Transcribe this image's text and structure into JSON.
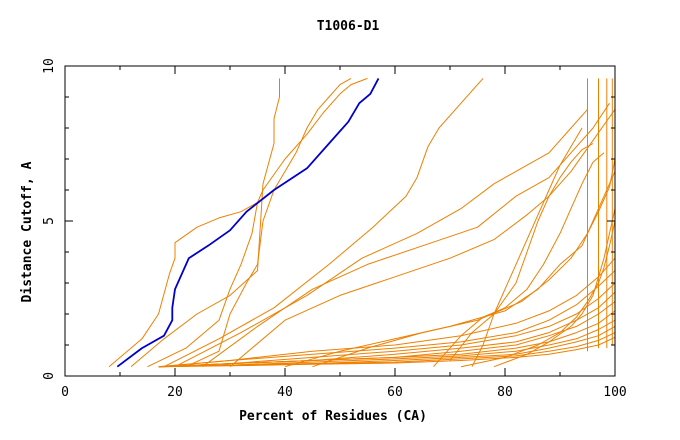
{
  "chart_data": {
    "type": "line",
    "title": "T1006-D1",
    "xlabel": "Percent of Residues (CA)",
    "ylabel": "Distance Cutoff, A",
    "xlim": [
      0,
      100
    ],
    "ylim": [
      0,
      10
    ],
    "xticks": [
      0,
      20,
      40,
      60,
      80,
      100
    ],
    "yticks": [
      0,
      5,
      10
    ],
    "grid": false,
    "colors": {
      "highlight": "#0000cc",
      "other": "#ee8000"
    },
    "highlight": {
      "x": [
        9.5,
        14,
        18,
        19.5,
        19.5,
        20,
        22.5,
        26,
        30,
        33,
        38,
        44,
        48,
        51.5,
        53.5,
        55.5,
        57
      ],
      "y": [
        0.3,
        0.9,
        1.3,
        1.8,
        2.2,
        2.8,
        3.8,
        4.2,
        4.7,
        5.3,
        6.0,
        6.7,
        7.5,
        8.2,
        8.8,
        9.1,
        9.6
      ]
    },
    "series": [
      {
        "x": [
          8,
          14,
          17,
          19,
          20,
          20,
          24,
          28,
          32,
          35
        ],
        "y": [
          0.3,
          1.2,
          2.0,
          3.3,
          3.8,
          4.3,
          4.8,
          5.1,
          5.3,
          5.6
        ]
      },
      {
        "x": [
          12,
          18,
          24,
          30,
          35,
          36,
          38,
          38,
          39,
          39
        ],
        "y": [
          0.3,
          1.2,
          2.0,
          2.6,
          3.4,
          6.2,
          7.5,
          8.3,
          9.0,
          9.6
        ]
      },
      {
        "x": [
          15,
          22,
          28,
          30,
          32,
          34,
          35,
          36,
          40,
          44,
          47,
          50,
          52,
          55
        ],
        "y": [
          0.3,
          0.9,
          1.8,
          2.8,
          3.6,
          4.6,
          5.6,
          6.0,
          7.0,
          7.8,
          8.5,
          9.1,
          9.4,
          9.6
        ]
      },
      {
        "x": [
          22,
          28,
          30,
          33,
          35,
          36,
          38,
          40,
          42,
          44,
          46,
          48,
          50,
          52
        ],
        "y": [
          0.3,
          0.8,
          2.0,
          3.0,
          3.6,
          5.0,
          6.0,
          6.6,
          7.2,
          8.0,
          8.6,
          9.0,
          9.4,
          9.6
        ]
      },
      {
        "x": [
          18,
          28,
          38,
          48,
          56,
          62,
          64,
          66,
          68,
          72,
          76
        ],
        "y": [
          0.3,
          1.2,
          2.2,
          3.6,
          4.8,
          5.8,
          6.4,
          7.4,
          8.0,
          8.8,
          9.6
        ]
      },
      {
        "x": [
          20,
          32,
          44,
          54,
          64,
          72,
          78,
          84,
          88,
          92,
          95
        ],
        "y": [
          0.3,
          1.4,
          2.6,
          3.8,
          4.6,
          5.4,
          6.2,
          6.8,
          7.2,
          8.0,
          8.6
        ]
      },
      {
        "x": [
          25,
          35,
          45,
          55,
          65,
          75,
          82,
          88,
          92,
          96,
          99
        ],
        "y": [
          0.3,
          1.6,
          2.8,
          3.6,
          4.2,
          4.8,
          5.8,
          6.4,
          7.2,
          8.0,
          8.8
        ]
      },
      {
        "x": [
          30,
          40,
          50,
          60,
          70,
          78,
          84,
          88,
          92,
          96,
          100
        ],
        "y": [
          0.3,
          1.8,
          2.6,
          3.2,
          3.8,
          4.4,
          5.2,
          5.8,
          6.6,
          7.6,
          8.6
        ]
      },
      {
        "x": [
          74,
          76,
          78,
          80,
          82,
          84,
          86,
          88,
          90,
          92,
          94
        ],
        "y": [
          0.3,
          1.0,
          2.0,
          2.8,
          3.6,
          4.4,
          5.2,
          6.0,
          6.8,
          7.4,
          8.0
        ]
      },
      {
        "x": [
          70,
          74,
          78,
          82,
          84,
          86,
          88,
          90,
          92,
          94,
          96
        ],
        "y": [
          0.5,
          1.4,
          2.0,
          3.0,
          4.0,
          5.0,
          5.8,
          6.4,
          6.9,
          7.3,
          7.5
        ]
      },
      {
        "x": [
          67,
          72,
          76,
          80,
          84,
          87,
          90,
          92,
          94,
          96,
          98
        ],
        "y": [
          0.3,
          1.3,
          1.9,
          2.2,
          2.8,
          3.6,
          4.6,
          5.4,
          6.2,
          6.9,
          7.2
        ]
      },
      {
        "x": [
          40,
          50,
          60,
          70,
          80,
          86,
          90,
          94,
          96,
          98,
          100
        ],
        "y": [
          0.3,
          0.8,
          1.2,
          1.6,
          2.1,
          2.8,
          3.6,
          4.2,
          5.0,
          5.8,
          6.6
        ]
      },
      {
        "x": [
          45,
          55,
          65,
          75,
          83,
          88,
          92,
          95,
          97,
          99,
          100
        ],
        "y": [
          0.3,
          0.9,
          1.4,
          1.8,
          2.4,
          3.1,
          3.8,
          4.6,
          5.3,
          6.1,
          7.0
        ]
      },
      {
        "x": [
          17,
          30,
          45,
          60,
          72,
          82,
          88,
          93,
          97,
          100
        ],
        "y": [
          0.3,
          0.5,
          0.8,
          1.0,
          1.3,
          1.7,
          2.1,
          2.6,
          3.2,
          3.8
        ]
      },
      {
        "x": [
          17,
          30,
          45,
          60,
          72,
          82,
          88,
          93,
          97,
          100
        ],
        "y": [
          0.3,
          0.5,
          0.7,
          0.9,
          1.1,
          1.4,
          1.8,
          2.3,
          2.9,
          3.4
        ]
      },
      {
        "x": [
          17,
          30,
          45,
          60,
          72,
          82,
          88,
          93,
          97,
          100
        ],
        "y": [
          0.3,
          0.4,
          0.6,
          0.8,
          1.0,
          1.3,
          1.6,
          2.0,
          2.5,
          3.0
        ]
      },
      {
        "x": [
          17,
          30,
          45,
          60,
          72,
          82,
          88,
          93,
          97,
          100
        ],
        "y": [
          0.3,
          0.4,
          0.5,
          0.7,
          0.9,
          1.1,
          1.4,
          1.8,
          2.2,
          2.7
        ]
      },
      {
        "x": [
          17,
          30,
          45,
          60,
          72,
          82,
          88,
          93,
          97,
          100
        ],
        "y": [
          0.3,
          0.4,
          0.5,
          0.6,
          0.8,
          1.0,
          1.3,
          1.6,
          2.0,
          2.4
        ]
      },
      {
        "x": [
          17,
          30,
          45,
          60,
          72,
          82,
          88,
          93,
          97,
          100
        ],
        "y": [
          0.3,
          0.4,
          0.5,
          0.6,
          0.7,
          0.9,
          1.1,
          1.4,
          1.7,
          2.1
        ]
      },
      {
        "x": [
          17,
          30,
          45,
          60,
          72,
          82,
          88,
          93,
          97,
          100
        ],
        "y": [
          0.3,
          0.35,
          0.45,
          0.55,
          0.65,
          0.8,
          1.0,
          1.2,
          1.5,
          1.8
        ]
      },
      {
        "x": [
          17,
          30,
          45,
          60,
          72,
          82,
          88,
          93,
          97,
          100
        ],
        "y": [
          0.3,
          0.35,
          0.4,
          0.5,
          0.6,
          0.7,
          0.9,
          1.1,
          1.3,
          1.6
        ]
      },
      {
        "x": [
          17,
          30,
          45,
          60,
          72,
          82,
          88,
          93,
          97,
          100
        ],
        "y": [
          0.3,
          0.35,
          0.4,
          0.45,
          0.55,
          0.65,
          0.8,
          0.95,
          1.15,
          1.4
        ]
      },
      {
        "x": [
          17,
          30,
          45,
          60,
          72,
          82,
          88,
          93,
          97,
          100
        ],
        "y": [
          0.3,
          0.33,
          0.38,
          0.42,
          0.5,
          0.6,
          0.7,
          0.85,
          1.0,
          1.25
        ]
      },
      {
        "x": [
          72,
          80,
          86,
          90,
          93,
          95,
          97,
          98,
          99,
          100
        ],
        "y": [
          0.3,
          0.6,
          1.0,
          1.4,
          1.9,
          2.4,
          3.0,
          3.5,
          4.2,
          5.0
        ]
      },
      {
        "x": [
          78,
          84,
          88,
          92,
          94,
          96,
          97,
          98,
          99,
          100
        ],
        "y": [
          0.3,
          0.7,
          1.1,
          1.6,
          2.0,
          2.6,
          3.2,
          3.8,
          4.6,
          5.4
        ]
      },
      {
        "x": [
          95,
          95,
          95,
          95,
          95,
          95
        ],
        "y": [
          0.8,
          2.0,
          4.0,
          6.0,
          8.0,
          9.6
        ]
      },
      {
        "x": [
          97,
          97,
          97,
          97,
          97,
          97
        ],
        "y": [
          0.9,
          2.0,
          4.0,
          6.0,
          8.0,
          9.6
        ]
      },
      {
        "x": [
          98.5,
          98.5,
          98.5,
          98.5,
          98.5,
          98.5
        ],
        "y": [
          0.9,
          2.0,
          4.0,
          6.0,
          8.0,
          9.6
        ]
      },
      {
        "x": [
          99.5,
          99.5,
          99.5,
          99.5,
          99.5,
          99.5
        ],
        "y": [
          1.0,
          2.2,
          4.0,
          6.0,
          8.0,
          9.6
        ]
      }
    ]
  }
}
